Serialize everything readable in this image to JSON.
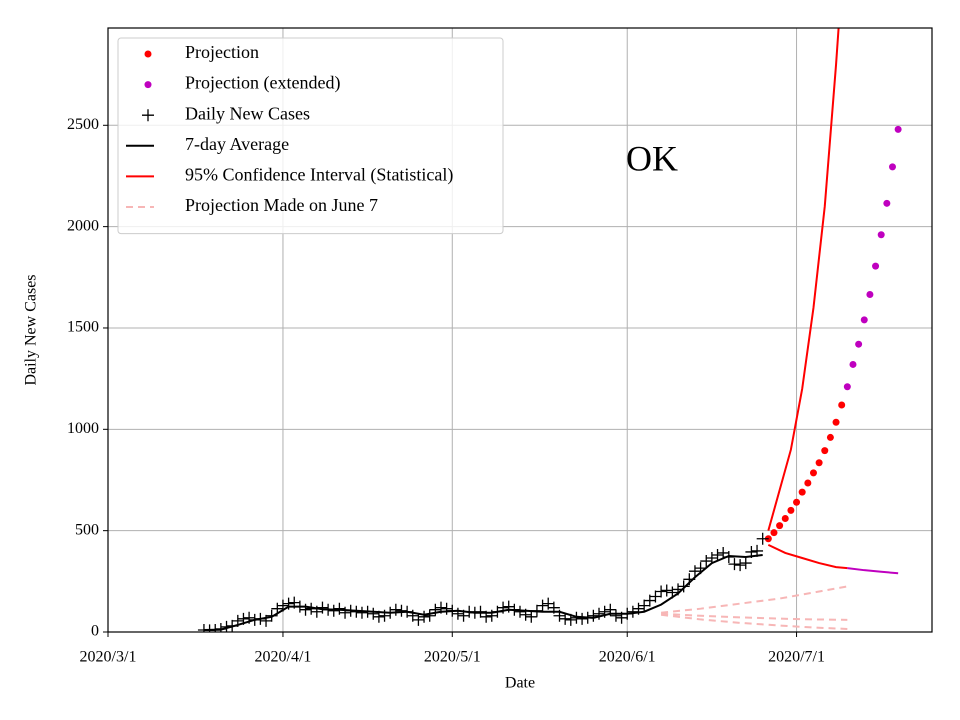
{
  "chart_data": {
    "type": "line",
    "xlabel": "Date",
    "ylabel": "Daily New Cases",
    "annotation": "OK",
    "xlim": [
      0,
      146
    ],
    "ylim": [
      0,
      2980
    ],
    "xticks": [
      {
        "value": 0,
        "label": "2020/3/1"
      },
      {
        "value": 31,
        "label": "2020/4/1"
      },
      {
        "value": 61,
        "label": "2020/5/1"
      },
      {
        "value": 92,
        "label": "2020/6/1"
      },
      {
        "value": 122,
        "label": "2020/7/1"
      }
    ],
    "yticks": [
      0,
      500,
      1000,
      1500,
      2000,
      2500
    ],
    "grid": true,
    "legend": "upper left",
    "series": [
      {
        "name": "Projection",
        "style": "dots",
        "color": "#ff0000",
        "x": [
          117,
          118,
          119,
          120,
          121,
          122,
          123,
          124,
          125,
          126,
          127,
          128,
          129,
          130
        ],
        "values": [
          460,
          490,
          525,
          560,
          600,
          640,
          690,
          735,
          785,
          835,
          895,
          960,
          1035,
          1120
        ]
      },
      {
        "name": "Projection (extended)",
        "style": "dots",
        "color": "#bf00bf",
        "x": [
          131,
          132,
          133,
          134,
          135,
          136,
          137,
          138,
          139,
          140
        ],
        "values": [
          1210,
          1320,
          1420,
          1540,
          1665,
          1805,
          1960,
          2115,
          2295,
          2480
        ]
      },
      {
        "name": "Daily New Cases",
        "style": "plus",
        "color": "#000000",
        "x": [
          17,
          18,
          19,
          20,
          21,
          22,
          23,
          24,
          25,
          26,
          27,
          28,
          29,
          30,
          31,
          32,
          33,
          34,
          35,
          36,
          37,
          38,
          39,
          40,
          41,
          42,
          43,
          44,
          45,
          46,
          47,
          48,
          49,
          50,
          51,
          52,
          53,
          54,
          55,
          56,
          57,
          58,
          59,
          60,
          61,
          62,
          63,
          64,
          65,
          66,
          67,
          68,
          69,
          70,
          71,
          72,
          73,
          74,
          75,
          76,
          77,
          78,
          79,
          80,
          81,
          82,
          83,
          84,
          85,
          86,
          87,
          88,
          89,
          90,
          91,
          92,
          93,
          94,
          95,
          96,
          97,
          98,
          99,
          100,
          101,
          102,
          103,
          104,
          105,
          106,
          107,
          108,
          109,
          110,
          111,
          112,
          113,
          114,
          115,
          116
        ],
        "values": [
          10,
          8,
          10,
          15,
          25,
          30,
          55,
          65,
          70,
          60,
          65,
          55,
          80,
          115,
          130,
          140,
          145,
          125,
          110,
          115,
          100,
          120,
          110,
          105,
          115,
          95,
          105,
          100,
          95,
          100,
          90,
          75,
          80,
          95,
          110,
          105,
          100,
          80,
          60,
          75,
          80,
          110,
          120,
          115,
          105,
          90,
          80,
          100,
          95,
          100,
          75,
          80,
          100,
          120,
          125,
          110,
          100,
          85,
          75,
          105,
          130,
          140,
          120,
          80,
          65,
          60,
          70,
          65,
          70,
          80,
          90,
          100,
          110,
          80,
          70,
          90,
          100,
          115,
          130,
          155,
          175,
          200,
          205,
          195,
          210,
          225,
          260,
          300,
          315,
          350,
          365,
          380,
          390,
          370,
          335,
          330,
          340,
          395,
          400,
          460
        ]
      },
      {
        "name": "7-day Average",
        "style": "line",
        "color": "#000000",
        "x": [
          17,
          20,
          23,
          26,
          29,
          32,
          35,
          38,
          41,
          44,
          47,
          50,
          53,
          56,
          59,
          62,
          65,
          68,
          71,
          74,
          77,
          80,
          83,
          86,
          89,
          92,
          95,
          98,
          101,
          104,
          107,
          110,
          113,
          116
        ],
        "values": [
          10,
          12,
          35,
          60,
          75,
          125,
          125,
          112,
          110,
          105,
          100,
          95,
          100,
          85,
          100,
          105,
          95,
          95,
          110,
          105,
          100,
          100,
          75,
          70,
          90,
          90,
          100,
          135,
          190,
          270,
          340,
          375,
          370,
          380
        ]
      },
      {
        "name": "95% Confidence Interval (Statistical)",
        "style": "line",
        "color": "#ff0000",
        "x": [
          117,
          119,
          121,
          123,
          125,
          127,
          129,
          130
        ],
        "values": [
          500,
          700,
          900,
          1200,
          1600,
          2100,
          2800,
          3200
        ]
      },
      {
        "name": "Projection Made on June 7",
        "style": "dashed",
        "color": "#f7b6b6",
        "x": [
          98,
          105,
          112,
          119,
          125,
          131
        ],
        "values": [
          95,
          115,
          140,
          165,
          195,
          225
        ]
      },
      {
        "style": "line",
        "color": "#ff0000",
        "x": [
          117,
          120,
          123,
          126,
          129,
          131
        ],
        "values": [
          430,
          390,
          365,
          340,
          320,
          315
        ]
      },
      {
        "style": "line",
        "color": "#bf00bf",
        "x": [
          131,
          134,
          137,
          140
        ],
        "values": [
          315,
          305,
          297,
          290
        ]
      },
      {
        "style": "dashed",
        "color": "#f7b6b6",
        "x": [
          98,
          105,
          112,
          119,
          125,
          131
        ],
        "values": [
          90,
          80,
          72,
          66,
          62,
          60
        ]
      },
      {
        "style": "dashed",
        "color": "#f7b6b6",
        "x": [
          98,
          105,
          112,
          119,
          125,
          131
        ],
        "values": [
          85,
          62,
          45,
          32,
          22,
          15
        ]
      }
    ]
  }
}
